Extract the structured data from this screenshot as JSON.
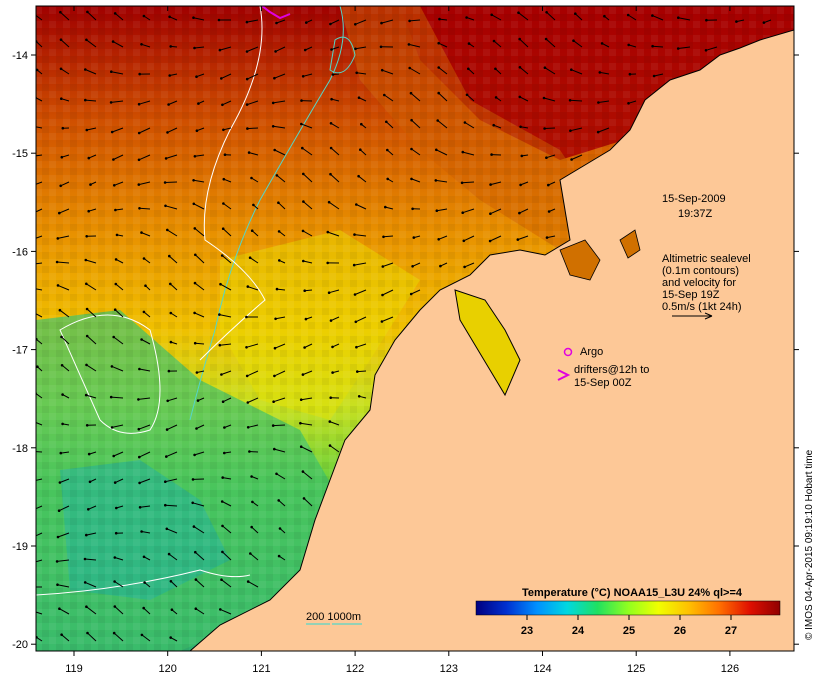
{
  "map": {
    "lon_ticks": [
      "119",
      "120",
      "121",
      "122",
      "123",
      "124",
      "125",
      "126"
    ],
    "lat_ticks": [
      "-14",
      "-15",
      "-16",
      "-17",
      "-18",
      "-19",
      "-20"
    ],
    "colors": {
      "land": "#fdc897",
      "coast": "#000000",
      "contour_200": "#55d6c8",
      "contour_1000": "#ffffff",
      "argo": "#e000e0",
      "drifter": "#e000e0"
    }
  },
  "annotations": {
    "date": "15-Sep-2009",
    "time": "19:37Z",
    "altimetry": [
      "Altimetric sealevel",
      "(0.1m contours)",
      "and velocity for",
      "15-Sep 19Z",
      "0.5m/s (1kt 24h)"
    ],
    "argo_label": "Argo",
    "drifters_line1": "drifters@12h to",
    "drifters_line2": "15-Sep 00Z",
    "isobath_label": "200  1000m"
  },
  "colorbar": {
    "title": "Temperature (°C) NOAA15_L3U 24% ql>=4",
    "ticks": [
      "23",
      "24",
      "25",
      "26",
      "27"
    ],
    "stops": [
      "#000080",
      "#0030d0",
      "#0090ff",
      "#00d8e0",
      "#20e060",
      "#90ff20",
      "#f0ff00",
      "#ffc000",
      "#ff7000",
      "#e01000",
      "#900000"
    ]
  },
  "credit": "© IMOS 04-Apr-2015 09:19:10 Hobart time"
}
